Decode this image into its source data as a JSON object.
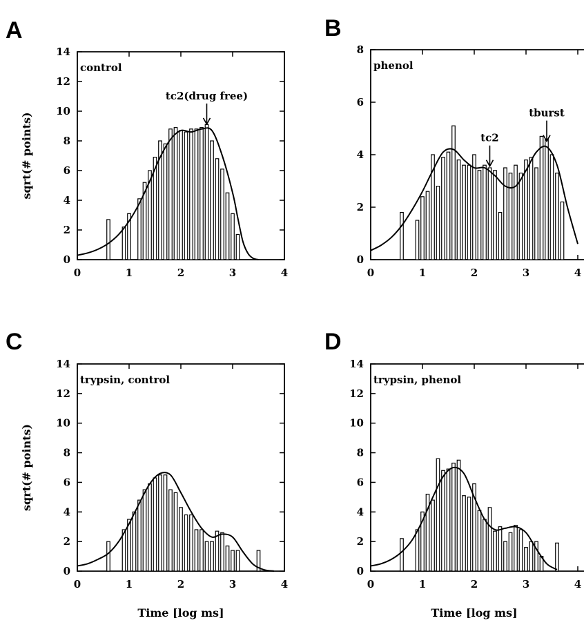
{
  "figure": {
    "ylabel": "sqrt(# points)",
    "xlabel": "Time [log ms]"
  },
  "chart_data": [
    {
      "id": "A",
      "letter": "A",
      "type": "bar",
      "panel_label": "control",
      "xlim": [
        0,
        4
      ],
      "ylim": [
        0,
        14
      ],
      "xticks": [
        0,
        1,
        2,
        3,
        4
      ],
      "yticks": [
        0,
        2,
        4,
        6,
        8,
        10,
        12,
        14
      ],
      "bin_width": 0.1,
      "bins_x": [
        0.6,
        0.9,
        1.0,
        1.2,
        1.3,
        1.4,
        1.5,
        1.6,
        1.7,
        1.8,
        1.9,
        2.0,
        2.1,
        2.2,
        2.3,
        2.4,
        2.5,
        2.6,
        2.7,
        2.8,
        2.9,
        3.0,
        3.1
      ],
      "bins_y": [
        2.7,
        2.2,
        3.1,
        4.1,
        5.2,
        6.0,
        6.9,
        8.0,
        7.8,
        8.8,
        8.9,
        8.7,
        8.6,
        8.8,
        8.8,
        8.9,
        9.1,
        8.0,
        6.8,
        6.1,
        4.5,
        3.1,
        1.7
      ],
      "fit_curve": {
        "x": [
          0,
          0.2,
          0.4,
          0.6,
          0.8,
          1.0,
          1.2,
          1.4,
          1.6,
          1.8,
          2.0,
          2.2,
          2.4,
          2.6,
          2.8,
          3.0,
          3.1,
          3.2,
          3.3,
          3.4,
          3.5
        ],
        "y": [
          0.3,
          0.45,
          0.7,
          1.1,
          1.7,
          2.6,
          3.8,
          5.3,
          6.9,
          8.1,
          8.7,
          8.6,
          8.8,
          8.7,
          7.0,
          4.5,
          2.8,
          1.2,
          0.4,
          0.08,
          0
        ]
      },
      "annotations": [
        {
          "text": "tc2(drug free)",
          "x": 2.5
        }
      ]
    },
    {
      "id": "B",
      "letter": "B",
      "type": "bar",
      "panel_label": "phenol",
      "xlim": [
        0,
        4
      ],
      "ylim": [
        0,
        8
      ],
      "xticks": [
        0,
        1,
        2,
        3,
        4
      ],
      "yticks": [
        0,
        2,
        4,
        6,
        8
      ],
      "bin_width": 0.1,
      "bins_x": [
        0.6,
        0.9,
        1.0,
        1.1,
        1.2,
        1.3,
        1.4,
        1.5,
        1.6,
        1.7,
        1.8,
        1.9,
        2.0,
        2.1,
        2.2,
        2.3,
        2.4,
        2.5,
        2.6,
        2.7,
        2.8,
        2.9,
        3.0,
        3.1,
        3.2,
        3.3,
        3.4,
        3.5,
        3.6,
        3.7
      ],
      "bins_y": [
        1.8,
        1.5,
        2.4,
        2.6,
        4.0,
        2.8,
        3.9,
        4.1,
        5.1,
        3.8,
        3.6,
        3.6,
        4.0,
        3.4,
        3.6,
        3.5,
        3.4,
        1.8,
        3.5,
        3.3,
        3.6,
        3.3,
        3.8,
        3.9,
        3.5,
        4.7,
        4.6,
        4.0,
        3.3,
        2.2
      ],
      "fit_curve": {
        "x": [
          0,
          0.2,
          0.4,
          0.6,
          0.8,
          1.0,
          1.2,
          1.4,
          1.6,
          1.8,
          2.0,
          2.2,
          2.4,
          2.6,
          2.8,
          3.0,
          3.2,
          3.4,
          3.6,
          3.8,
          4.0
        ],
        "y": [
          0.35,
          0.55,
          0.85,
          1.3,
          1.9,
          2.6,
          3.4,
          4.1,
          4.2,
          3.8,
          3.5,
          3.5,
          3.2,
          2.8,
          2.8,
          3.4,
          4.1,
          4.3,
          3.6,
          2.0,
          0.6
        ]
      },
      "annotations": [
        {
          "text": "tc2",
          "x": 2.3
        },
        {
          "text": "tburst",
          "x": 3.4
        }
      ]
    },
    {
      "id": "C",
      "letter": "C",
      "type": "bar",
      "panel_label": "trypsin, control",
      "xlim": [
        0,
        4
      ],
      "ylim": [
        0,
        14
      ],
      "xticks": [
        0,
        1,
        2,
        3,
        4
      ],
      "yticks": [
        0,
        2,
        4,
        6,
        8,
        10,
        12,
        14
      ],
      "bin_width": 0.1,
      "bins_x": [
        0.6,
        0.9,
        1.0,
        1.1,
        1.2,
        1.3,
        1.4,
        1.5,
        1.6,
        1.7,
        1.8,
        1.9,
        2.0,
        2.1,
        2.2,
        2.3,
        2.4,
        2.5,
        2.6,
        2.7,
        2.8,
        2.9,
        3.0,
        3.1,
        3.5
      ],
      "bins_y": [
        2.0,
        2.8,
        3.5,
        4.0,
        4.8,
        5.5,
        5.9,
        6.3,
        6.5,
        6.5,
        5.5,
        5.3,
        4.3,
        3.8,
        3.8,
        2.8,
        2.8,
        2.0,
        2.0,
        2.7,
        2.6,
        1.7,
        1.4,
        1.4,
        1.4
      ],
      "fit_curve": {
        "x": [
          0,
          0.2,
          0.4,
          0.6,
          0.8,
          1.0,
          1.2,
          1.4,
          1.6,
          1.8,
          2.0,
          2.2,
          2.4,
          2.6,
          2.8,
          3.0,
          3.2,
          3.4,
          3.6,
          3.8
        ],
        "y": [
          0.35,
          0.5,
          0.8,
          1.2,
          2.0,
          3.2,
          4.6,
          5.9,
          6.6,
          6.5,
          5.3,
          4.0,
          2.9,
          2.3,
          2.5,
          2.3,
          1.3,
          0.45,
          0.1,
          0
        ]
      },
      "annotations": []
    },
    {
      "id": "D",
      "letter": "D",
      "type": "bar",
      "panel_label": "trypsin, phenol",
      "xlim": [
        0,
        4
      ],
      "ylim": [
        0,
        14
      ],
      "xticks": [
        0,
        1,
        2,
        3,
        4
      ],
      "yticks": [
        0,
        2,
        4,
        6,
        8,
        10,
        12,
        14
      ],
      "bin_width": 0.1,
      "bins_x": [
        0.6,
        0.9,
        1.0,
        1.1,
        1.2,
        1.3,
        1.4,
        1.5,
        1.6,
        1.7,
        1.8,
        1.9,
        2.0,
        2.1,
        2.2,
        2.3,
        2.4,
        2.5,
        2.6,
        2.7,
        2.8,
        2.9,
        3.0,
        3.1,
        3.2,
        3.3,
        3.6
      ],
      "bins_y": [
        2.2,
        2.8,
        4.0,
        5.2,
        4.8,
        7.6,
        6.8,
        6.9,
        7.3,
        7.5,
        5.1,
        5.0,
        5.9,
        4.1,
        3.5,
        4.3,
        2.7,
        3.0,
        2.0,
        2.6,
        3.1,
        2.8,
        1.6,
        2.0,
        2.0,
        1.0,
        1.9
      ],
      "fit_curve": {
        "x": [
          0,
          0.2,
          0.4,
          0.6,
          0.8,
          1.0,
          1.2,
          1.4,
          1.6,
          1.8,
          2.0,
          2.2,
          2.4,
          2.6,
          2.8,
          3.0,
          3.2,
          3.4,
          3.6
        ],
        "y": [
          0.35,
          0.5,
          0.8,
          1.3,
          2.1,
          3.4,
          5.0,
          6.4,
          7.0,
          6.6,
          5.0,
          3.5,
          2.8,
          2.9,
          3.0,
          2.6,
          1.5,
          0.5,
          0.1
        ]
      },
      "annotations": []
    }
  ]
}
